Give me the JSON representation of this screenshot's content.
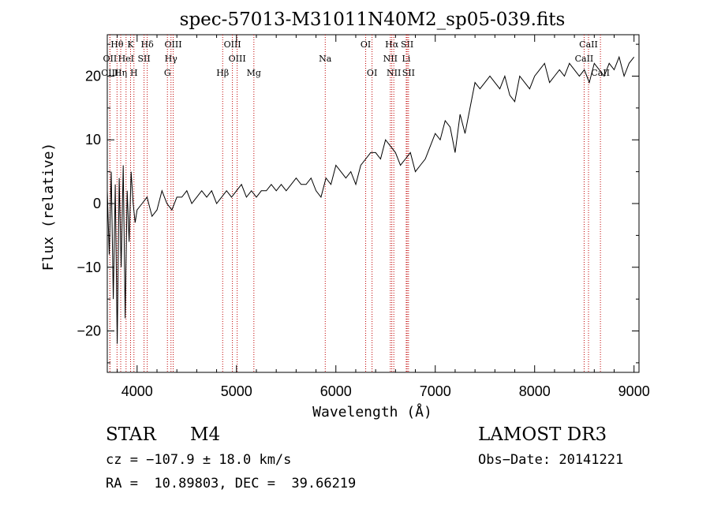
{
  "chart_data": {
    "type": "line",
    "title": "spec-57013-M31011N40M2_sp05-039.fits",
    "xlabel": "Wavelength (Å)",
    "ylabel": "Flux (relative)",
    "xlim": [
      3700,
      9050
    ],
    "ylim": [
      -26.5,
      26.5
    ],
    "xticks": [
      4000,
      5000,
      6000,
      7000,
      8000,
      9000
    ],
    "yticks": [
      -20,
      -10,
      0,
      10,
      20
    ],
    "xtick_labels": [
      "4000",
      "5000",
      "6000",
      "7000",
      "8000",
      "9000"
    ],
    "ytick_labels": [
      "−20",
      "−10",
      "0",
      "10",
      "20"
    ],
    "grid": false,
    "series": [
      {
        "name": "flux",
        "x": [
          3700,
          3720,
          3740,
          3760,
          3780,
          3800,
          3820,
          3840,
          3860,
          3880,
          3900,
          3920,
          3940,
          3960,
          3980,
          4000,
          4050,
          4100,
          4150,
          4200,
          4250,
          4300,
          4350,
          4400,
          4450,
          4500,
          4550,
          4600,
          4650,
          4700,
          4750,
          4800,
          4850,
          4900,
          4950,
          5000,
          5050,
          5100,
          5150,
          5200,
          5250,
          5300,
          5350,
          5400,
          5450,
          5500,
          5550,
          5600,
          5650,
          5700,
          5750,
          5800,
          5850,
          5900,
          5950,
          6000,
          6050,
          6100,
          6150,
          6200,
          6250,
          6300,
          6350,
          6400,
          6450,
          6500,
          6550,
          6600,
          6650,
          6700,
          6750,
          6800,
          6850,
          6900,
          6950,
          7000,
          7050,
          7100,
          7150,
          7200,
          7250,
          7300,
          7350,
          7400,
          7450,
          7500,
          7550,
          7600,
          7650,
          7700,
          7750,
          7800,
          7850,
          7900,
          7950,
          8000,
          8050,
          8100,
          8150,
          8200,
          8250,
          8300,
          8350,
          8400,
          8450,
          8500,
          8550,
          8600,
          8650,
          8700,
          8750,
          8800,
          8850,
          8900,
          8950,
          9000
        ],
        "y": [
          2,
          -8,
          5,
          -15,
          3,
          -22,
          4,
          -10,
          6,
          -18,
          2,
          -6,
          5,
          0,
          -3,
          -1,
          0,
          1,
          -2,
          -1,
          2,
          0,
          -1,
          1,
          1,
          2,
          0,
          1,
          2,
          1,
          2,
          0,
          1,
          2,
          1,
          2,
          3,
          1,
          2,
          1,
          2,
          2,
          3,
          2,
          3,
          2,
          3,
          4,
          3,
          3,
          4,
          2,
          1,
          4,
          3,
          6,
          5,
          4,
          5,
          3,
          6,
          7,
          8,
          8,
          7,
          10,
          9,
          8,
          6,
          7,
          8,
          5,
          6,
          7,
          9,
          11,
          10,
          13,
          12,
          8,
          14,
          11,
          15,
          19,
          18,
          19,
          20,
          19,
          18,
          20,
          17,
          16,
          20,
          19,
          18,
          20,
          21,
          22,
          19,
          20,
          21,
          20,
          22,
          21,
          20,
          21,
          19,
          22,
          21,
          20,
          22,
          21,
          23,
          20,
          22,
          23
        ]
      }
    ],
    "line_markers": [
      {
        "label": "Hθ",
        "wavelength": 3798,
        "row": 0
      },
      {
        "label": "K",
        "wavelength": 3934,
        "row": 0
      },
      {
        "label": "Hδ",
        "wavelength": 4102,
        "row": 0
      },
      {
        "label": "OIII",
        "wavelength": 4363,
        "row": 0
      },
      {
        "label": "OIII",
        "wavelength": 4959,
        "row": 0
      },
      {
        "label": "OI",
        "wavelength": 6300,
        "row": 0
      },
      {
        "label": "Hα",
        "wavelength": 6563,
        "row": 0
      },
      {
        "label": "SII",
        "wavelength": 6717,
        "row": 0
      },
      {
        "label": "CaII",
        "wavelength": 8542,
        "row": 0
      },
      {
        "label": "OII",
        "wavelength": 3727,
        "row": 1
      },
      {
        "label": "HeI",
        "wavelength": 3889,
        "row": 1
      },
      {
        "label": "SII",
        "wavelength": 4070,
        "row": 1
      },
      {
        "label": "Hγ",
        "wavelength": 4341,
        "row": 1
      },
      {
        "label": "OIII",
        "wavelength": 5007,
        "row": 1
      },
      {
        "label": "Na",
        "wavelength": 5893,
        "row": 1
      },
      {
        "label": "NII",
        "wavelength": 6548,
        "row": 1
      },
      {
        "label": "Li",
        "wavelength": 6708,
        "row": 1
      },
      {
        "label": "CaII",
        "wavelength": 8498,
        "row": 1
      },
      {
        "label": "OIII",
        "wavelength": 3726,
        "row": 2
      },
      {
        "label": "Hη",
        "wavelength": 3835,
        "row": 2
      },
      {
        "label": "H",
        "wavelength": 3968,
        "row": 2
      },
      {
        "label": "G",
        "wavelength": 4305,
        "row": 2
      },
      {
        "label": "Hβ",
        "wavelength": 4861,
        "row": 2
      },
      {
        "label": "Mg",
        "wavelength": 5175,
        "row": 2
      },
      {
        "label": "OI",
        "wavelength": 6364,
        "row": 2
      },
      {
        "label": "NII",
        "wavelength": 6583,
        "row": 2
      },
      {
        "label": "SII",
        "wavelength": 6731,
        "row": 2
      },
      {
        "label": "CaII",
        "wavelength": 8662,
        "row": 2
      }
    ]
  },
  "footer": {
    "object_class": "STAR",
    "subclass": "M4",
    "survey": "LAMOST DR3",
    "cz": "cz = −107.9 ± 18.0 km/s",
    "obs_date": "Obs−Date: 20141221",
    "coords": "RA =  10.89803, DEC =  39.66219"
  }
}
